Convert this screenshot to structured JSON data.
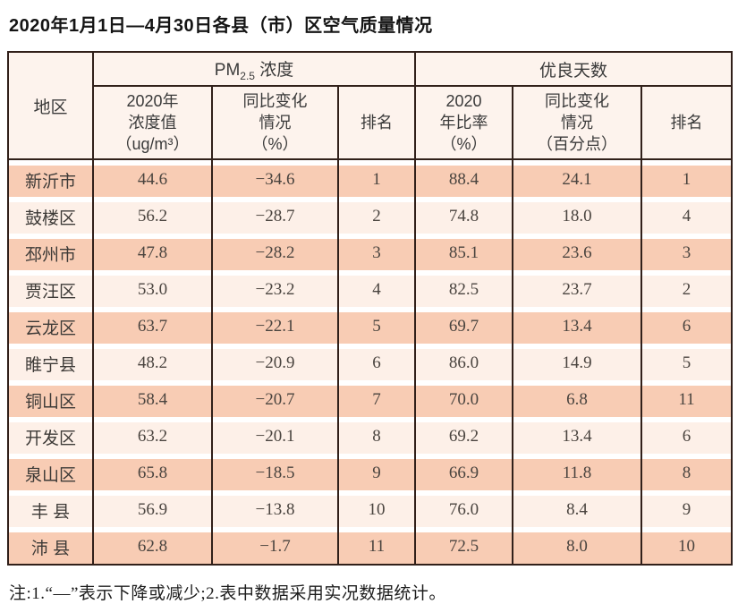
{
  "title": "2020年1月1日—4月30日各县（市）区空气质量情况",
  "table": {
    "header": {
      "region": "地区",
      "pm_group": {
        "prefix": "PM",
        "sub": "2.5",
        "suffix": " 浓度"
      },
      "good_days_group": "优良天数",
      "pm_value_label": "2020年\n浓度值\n（ug/m³）",
      "pm_change_label": "同比变化\n情况\n（%）",
      "pm_rank_label": "排名",
      "rate_label": "2020\n年比率\n（%）",
      "rate_change_label": "同比变化\n情况\n（百分点）",
      "rate_rank_label": "排名"
    },
    "rows": [
      {
        "region": "新沂市",
        "pm_value": "44.6",
        "pm_change": "−34.6",
        "pm_rank": "1",
        "rate": "88.4",
        "rate_change": "24.1",
        "rate_rank": "1"
      },
      {
        "region": "鼓楼区",
        "pm_value": "56.2",
        "pm_change": "−28.7",
        "pm_rank": "2",
        "rate": "74.8",
        "rate_change": "18.0",
        "rate_rank": "4"
      },
      {
        "region": "邳州市",
        "pm_value": "47.8",
        "pm_change": "−28.2",
        "pm_rank": "3",
        "rate": "85.1",
        "rate_change": "23.6",
        "rate_rank": "3"
      },
      {
        "region": "贾汪区",
        "pm_value": "53.0",
        "pm_change": "−23.2",
        "pm_rank": "4",
        "rate": "82.5",
        "rate_change": "23.7",
        "rate_rank": "2"
      },
      {
        "region": "云龙区",
        "pm_value": "63.7",
        "pm_change": "−22.1",
        "pm_rank": "5",
        "rate": "69.7",
        "rate_change": "13.4",
        "rate_rank": "6"
      },
      {
        "region": "睢宁县",
        "pm_value": "48.2",
        "pm_change": "−20.9",
        "pm_rank": "6",
        "rate": "86.0",
        "rate_change": "14.9",
        "rate_rank": "5"
      },
      {
        "region": "铜山区",
        "pm_value": "58.4",
        "pm_change": "−20.7",
        "pm_rank": "7",
        "rate": "70.0",
        "rate_change": "6.8",
        "rate_rank": "11"
      },
      {
        "region": "开发区",
        "pm_value": "63.2",
        "pm_change": "−20.1",
        "pm_rank": "8",
        "rate": "69.2",
        "rate_change": "13.4",
        "rate_rank": "6"
      },
      {
        "region": "泉山区",
        "pm_value": "65.8",
        "pm_change": "−18.5",
        "pm_rank": "9",
        "rate": "66.9",
        "rate_change": "11.8",
        "rate_rank": "8"
      },
      {
        "region": "丰 县",
        "pm_value": "56.9",
        "pm_change": "−13.8",
        "pm_rank": "10",
        "rate": "76.0",
        "rate_change": "8.4",
        "rate_rank": "9"
      },
      {
        "region": "沛 县",
        "pm_value": "62.8",
        "pm_change": "−1.7",
        "pm_rank": "11",
        "rate": "72.5",
        "rate_change": "8.0",
        "rate_rank": "10"
      }
    ]
  },
  "note": "注:1.“—”表示下降或减少;2.表中数据采用实况数据统计。",
  "colors": {
    "row_salmon": "#f8ccb4",
    "row_light": "#fdf0e8",
    "header_bg": "#fdf3ed",
    "border_dark": "#31201a",
    "row_gap": "#ffffff",
    "text": "#3a3a3a"
  }
}
